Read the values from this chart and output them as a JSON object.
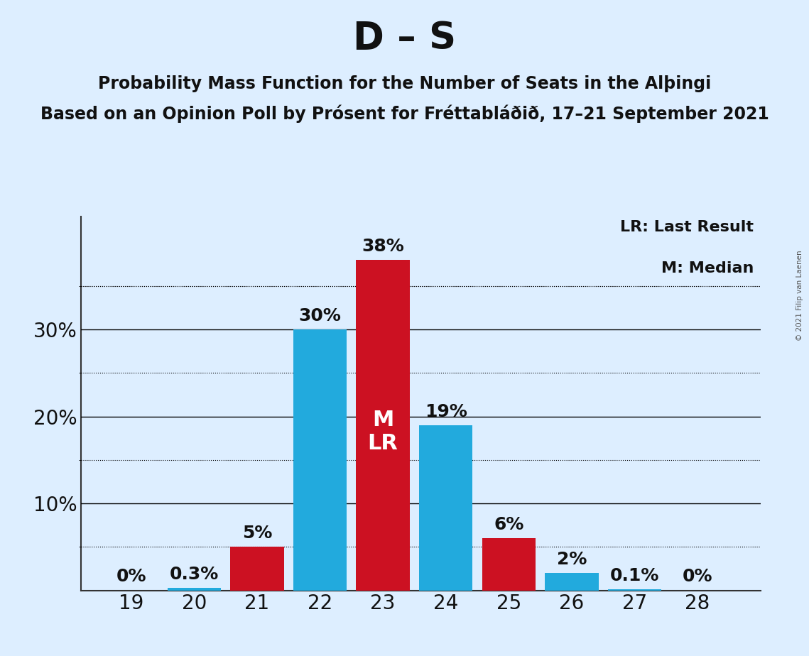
{
  "title": "D – S",
  "subtitle1": "Probability Mass Function for the Number of Seats in the Alþingi",
  "subtitle2": "Based on an Opinion Poll by Prósent for Fréttabláðið, 17–21 September 2021",
  "copyright": "© 2021 Filip van Laenen",
  "legend_lr": "LR: Last Result",
  "legend_m": "M: Median",
  "background_color": "#ddeeff",
  "bar_color_blue": "#22aadd",
  "bar_color_red": "#cc1122",
  "seats": [
    19,
    20,
    21,
    22,
    23,
    24,
    25,
    26,
    27,
    28
  ],
  "values": [
    0.0,
    0.3,
    5.0,
    30.0,
    38.0,
    19.0,
    6.0,
    2.0,
    0.1,
    0.0
  ],
  "labels": [
    "0%",
    "0.3%",
    "5%",
    "30%",
    "38%",
    "19%",
    "6%",
    "2%",
    "0.1%",
    "0%"
  ],
  "bar_colors": [
    "#22aadd",
    "#22aadd",
    "#cc1122",
    "#22aadd",
    "#cc1122",
    "#22aadd",
    "#cc1122",
    "#22aadd",
    "#22aadd",
    "#22aadd"
  ],
  "median_seat": 23,
  "lr_seat": 23,
  "yticks": [
    10,
    20,
    30
  ],
  "ylim": [
    0,
    43
  ],
  "grid_major_color": "#000000",
  "grid_minor_color": "#000000",
  "text_color": "#111111",
  "bar_label_fontsize": 18,
  "axis_label_fontsize": 20,
  "title_fontsize": 38,
  "subtitle_fontsize": 17,
  "mlr_label_color": "#ffffff",
  "mlr_fontsize": 22,
  "legend_fontsize": 16
}
